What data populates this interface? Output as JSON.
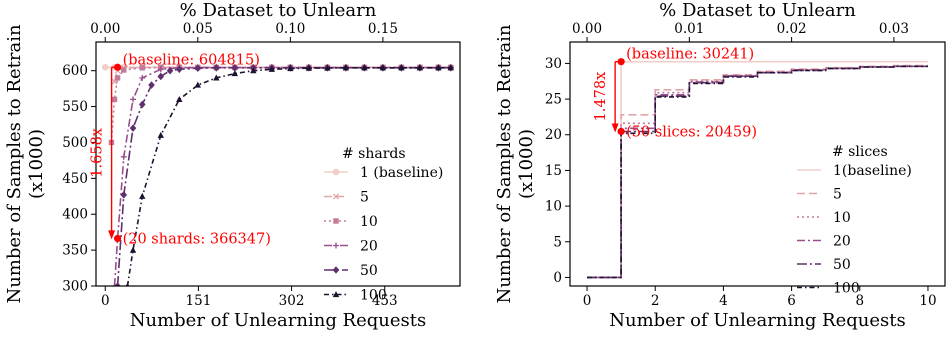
{
  "chart_data": [
    {
      "type": "line",
      "xlabel": "Number of Unlearning Requests",
      "ylabel_line1": "Number of Samples to Retrain",
      "ylabel_line2": "(x1000)",
      "top_xlabel": "% Dataset to Unlearn",
      "xlim": [
        -15,
        575
      ],
      "ylim": [
        300,
        640
      ],
      "xticks": [
        0,
        151,
        302,
        453
      ],
      "xtick_labels": [
        "0",
        "151",
        "302",
        "453"
      ],
      "yticks": [
        300,
        350,
        400,
        450,
        500,
        550,
        600
      ],
      "ytick_labels": [
        "300",
        "350",
        "400",
        "450",
        "500",
        "550",
        "600"
      ],
      "top_xticks": [
        0.0,
        0.05,
        0.1,
        0.15
      ],
      "top_xtick_labels": [
        "0.00",
        "0.05",
        "0.10",
        "0.15"
      ],
      "top_x_per_request": 0.0003333,
      "legend_title": "# shards",
      "legend_position": "right",
      "series": [
        {
          "name": "1 (baseline)",
          "color": "#f0cfc8",
          "marker": "circle",
          "dash": "solid",
          "x": [
            0,
            15,
            30,
            60,
            90,
            120,
            150,
            180,
            210,
            240,
            270,
            300,
            330,
            360,
            390,
            420,
            450,
            480,
            510,
            540,
            560
          ],
          "y": [
            604.8,
            604.8,
            604.8,
            604.8,
            604.8,
            604.8,
            604.8,
            604.8,
            604.8,
            604.8,
            604.8,
            604.8,
            604.8,
            604.8,
            604.8,
            604.8,
            604.8,
            604.8,
            604.8,
            604.8,
            604.8
          ]
        },
        {
          "name": "5",
          "color": "#e0a5a8",
          "marker": "x",
          "dash": "8,4",
          "x": [
            15,
            20,
            30,
            60,
            90,
            120,
            150,
            180,
            210,
            240,
            270,
            300,
            330,
            360,
            390,
            420,
            450,
            480,
            510,
            540,
            560
          ],
          "y": [
            585,
            600,
            604,
            604.5,
            604.6,
            604.6,
            604.6,
            604.6,
            604.6,
            604.6,
            604.6,
            604.6,
            604.6,
            604.6,
            604.6,
            604.6,
            604.6,
            604.6,
            604.6,
            604.6,
            604.6
          ]
        },
        {
          "name": "10",
          "color": "#c27b9a",
          "marker": "square",
          "dash": "2,3",
          "x": [
            10,
            15,
            20,
            30,
            60,
            90,
            120,
            150,
            180,
            210,
            240,
            270,
            300,
            330,
            360,
            390,
            420,
            450,
            480,
            510,
            540,
            560
          ],
          "y": [
            500,
            560,
            590,
            601,
            604,
            604.5,
            604.5,
            604.5,
            604.5,
            604.5,
            604.5,
            604.5,
            604.5,
            604.5,
            604.5,
            604.5,
            604.5,
            604.5,
            604.5,
            604.5,
            604.5,
            604.5
          ]
        },
        {
          "name": "20",
          "color": "#9b4f8e",
          "marker": "plus",
          "dash": "8,3,2,3",
          "x": [
            15,
            20,
            30,
            45,
            60,
            90,
            120,
            150,
            180,
            210,
            240,
            270,
            300,
            330,
            360,
            390,
            420,
            450,
            480,
            510,
            540,
            560
          ],
          "y": [
            300,
            366.3,
            480,
            560,
            590,
            602,
            604,
            604.3,
            604.3,
            604.3,
            604.3,
            604.3,
            604.3,
            604.3,
            604.3,
            604.3,
            604.3,
            604.3,
            604.3,
            604.3,
            604.3,
            604.3
          ]
        },
        {
          "name": "50",
          "color": "#60306e",
          "marker": "diamond",
          "dash": "10,3,2,3",
          "x": [
            20,
            30,
            45,
            60,
            75,
            90,
            105,
            120,
            150,
            180,
            210,
            240,
            270,
            300,
            330,
            360,
            390,
            420,
            450,
            480,
            510,
            540,
            560
          ],
          "y": [
            300,
            427,
            520,
            553,
            580,
            592,
            600,
            602,
            603.5,
            604,
            604,
            604,
            604,
            604,
            604,
            604,
            604,
            604,
            604,
            604,
            604,
            604,
            604
          ]
        },
        {
          "name": "100",
          "color": "#1e1230",
          "marker": "triangle",
          "dash": "5,3,1.5,3",
          "x": [
            36,
            45,
            60,
            90,
            120,
            150,
            180,
            210,
            240,
            270,
            300,
            330,
            360,
            390,
            420,
            450,
            480,
            510,
            540,
            560
          ],
          "y": [
            300,
            350,
            425,
            510,
            560,
            580,
            590,
            596,
            600,
            602,
            603,
            603.5,
            603.8,
            604,
            604,
            604,
            604,
            604,
            604,
            604
          ]
        }
      ],
      "annotations": {
        "baseline_label": "(baseline: 604815)",
        "baseline_point": {
          "x": 20,
          "y": 604.8
        },
        "target_label": "(20 shards: 366347)",
        "target_point": {
          "x": 20,
          "y": 366.3
        },
        "ratio_label": "1.658x"
      }
    },
    {
      "type": "line",
      "xlabel": "Number of Unlearning Requests",
      "ylabel_line1": "Number of Samples to Retrain",
      "ylabel_line2": "(x1000)",
      "top_xlabel": "% Dataset to Unlearn",
      "xlim": [
        -0.5,
        10.5
      ],
      "ylim": [
        -1.2,
        33
      ],
      "xticks": [
        0,
        2,
        4,
        6,
        8,
        10
      ],
      "xtick_labels": [
        "0",
        "2",
        "4",
        "6",
        "8",
        "10"
      ],
      "yticks": [
        0,
        5,
        10,
        15,
        20,
        25,
        30
      ],
      "ytick_labels": [
        "0",
        "5",
        "10",
        "15",
        "20",
        "25",
        "30"
      ],
      "top_xticks": [
        0.0,
        0.01,
        0.02,
        0.03
      ],
      "top_xtick_labels": [
        "0.00",
        "0.01",
        "0.02",
        "0.03"
      ],
      "top_x_per_request": 0.003333,
      "legend_title": "# slices",
      "legend_position": "right",
      "series": [
        {
          "name": "1(baseline)",
          "color": "#f0cfc8",
          "dash": "solid",
          "x": [
            0,
            1,
            1,
            2,
            2,
            10
          ],
          "y": [
            0,
            0,
            30.24,
            30.24,
            30.24,
            30.24
          ]
        },
        {
          "name": "5",
          "color": "#e0a5a8",
          "dash": "8,4",
          "x": [
            0,
            1,
            1,
            2,
            2,
            3,
            3,
            4,
            4,
            5,
            5,
            6,
            6,
            7,
            7,
            8,
            8,
            9,
            9,
            10
          ],
          "y": [
            0,
            0,
            22.8,
            22.8,
            26.3,
            26.3,
            27.7,
            27.7,
            28.4,
            28.4,
            28.9,
            28.9,
            29.2,
            29.2,
            29.4,
            29.4,
            29.6,
            29.6,
            29.7,
            29.7
          ]
        },
        {
          "name": "10",
          "color": "#c27b9a",
          "dash": "2,3",
          "x": [
            0,
            1,
            1,
            2,
            2,
            3,
            3,
            4,
            4,
            5,
            5,
            6,
            6,
            7,
            7,
            8,
            8,
            9,
            9,
            10
          ],
          "y": [
            0,
            0,
            21.6,
            21.6,
            25.9,
            25.9,
            27.5,
            27.5,
            28.3,
            28.3,
            28.8,
            28.8,
            29.1,
            29.1,
            29.3,
            29.3,
            29.5,
            29.5,
            29.6,
            29.6
          ]
        },
        {
          "name": "20",
          "color": "#9b4f8e",
          "dash": "8,3,2,3",
          "x": [
            0,
            1,
            1,
            2,
            2,
            3,
            3,
            4,
            4,
            5,
            5,
            6,
            6,
            7,
            7,
            8,
            8,
            9,
            9,
            10
          ],
          "y": [
            0,
            0,
            20.9,
            20.9,
            25.6,
            25.6,
            27.4,
            27.4,
            28.2,
            28.2,
            28.7,
            28.7,
            29.1,
            29.1,
            29.3,
            29.3,
            29.5,
            29.5,
            29.6,
            29.6
          ]
        },
        {
          "name": "50",
          "color": "#60306e",
          "dash": "10,3,2,3",
          "x": [
            0,
            1,
            1,
            2,
            2,
            3,
            3,
            4,
            4,
            5,
            5,
            6,
            6,
            7,
            7,
            8,
            8,
            9,
            9,
            10
          ],
          "y": [
            0,
            0,
            20.46,
            20.46,
            25.4,
            25.4,
            27.3,
            27.3,
            28.2,
            28.2,
            28.7,
            28.7,
            29.0,
            29.0,
            29.3,
            29.3,
            29.5,
            29.5,
            29.6,
            29.6
          ]
        },
        {
          "name": "100",
          "color": "#1e1230",
          "dash": "5,3,1.5,3",
          "x": [
            0,
            1,
            1,
            2,
            2,
            3,
            3,
            4,
            4,
            5,
            5,
            6,
            6,
            7,
            7,
            8,
            8,
            9,
            9,
            10
          ],
          "y": [
            0,
            0,
            20.2,
            20.2,
            25.3,
            25.3,
            27.2,
            27.2,
            28.1,
            28.1,
            28.7,
            28.7,
            29.0,
            29.0,
            29.3,
            29.3,
            29.5,
            29.5,
            29.6,
            29.6
          ]
        }
      ],
      "annotations": {
        "baseline_label": "(baseline: 30241)",
        "baseline_point": {
          "x": 1,
          "y": 30.24
        },
        "target_label": "(50 slices: 20459)",
        "target_point": {
          "x": 1,
          "y": 20.46
        },
        "ratio_label": "1.478x"
      }
    }
  ]
}
